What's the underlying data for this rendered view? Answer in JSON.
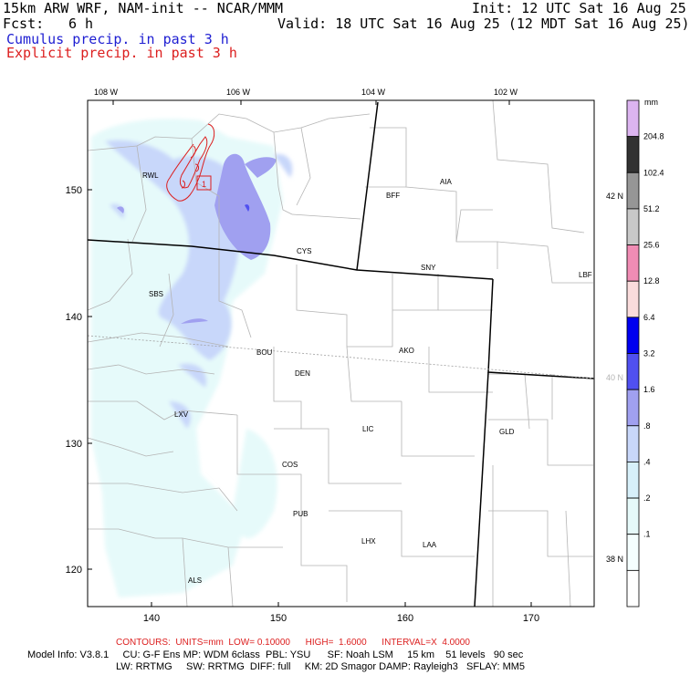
{
  "header": {
    "model": "15km ARW WRF, NAM-init -- NCAR/MMM",
    "init": "Init: 12 UTC Sat 16 Aug 25",
    "fcst_label": "Fcst:",
    "fcst_value": "6 h",
    "valid": "Valid: 18 UTC Sat 16 Aug 25 (12 MDT Sat 16 Aug 25)",
    "legend_cumulus": "Cumulus precip. in past 3 h",
    "legend_explicit": "Explicit precip. in past 3 h"
  },
  "colors": {
    "cumulus": "#1e1ed2",
    "explicit": "#dc1e1e",
    "contour_info": "#dc1e1e"
  },
  "map": {
    "top_lon_labels": [
      "108 W",
      "106 W",
      "104 W",
      "102 W"
    ],
    "left_y_labels": [
      "150",
      "140",
      "130",
      "120"
    ],
    "bottom_x_labels": [
      "140",
      "150",
      "160",
      "170"
    ],
    "right_lat_labels": [
      "42 N",
      "40 N",
      "38 N"
    ],
    "stations": [
      "RWL",
      "BFF",
      "AIA",
      "CYS",
      "SNY",
      "LBF",
      "SBS",
      "AKO",
      "BOU",
      "DEN",
      "LXV",
      "LIC",
      "GLD",
      "COS",
      "PUB",
      "LHX",
      "LAA",
      "ALS"
    ],
    "contour_label": "1"
  },
  "colorbar": {
    "units": "mm",
    "levels": [
      "204.8",
      "102.4",
      "51.2",
      "25.6",
      "12.8",
      "6.4",
      "3.2",
      "1.6",
      ".8",
      ".4",
      ".2",
      ".1"
    ],
    "colors": [
      "#dcb4f0",
      "#323232",
      "#969696",
      "#c8c8c8",
      "#f08cb4",
      "#fadcdc",
      "#0000f0",
      "#5050f0",
      "#a0a0f0",
      "#c8d7fa",
      "#d7f0fa",
      "#e6fafa",
      "#f5ffff",
      "#ffffff"
    ]
  },
  "footer": {
    "contours": "CONTOURS:  UNITS=mm  LOW= 0.10000      HIGH=  1.6000      INTERVAL=X  4.0000",
    "line1": "Model Info: V3.8.1     CU: G-F Ens MP: WDM 6class  PBL: YSU      SF: Noah LSM     15 km    51 levels   90 sec",
    "line2": "LW: RRTMG     SW: RRTMG  DIFF: full     KM: 2D Smagor DAMP: Rayleigh3   SFLAY: MM5"
  }
}
